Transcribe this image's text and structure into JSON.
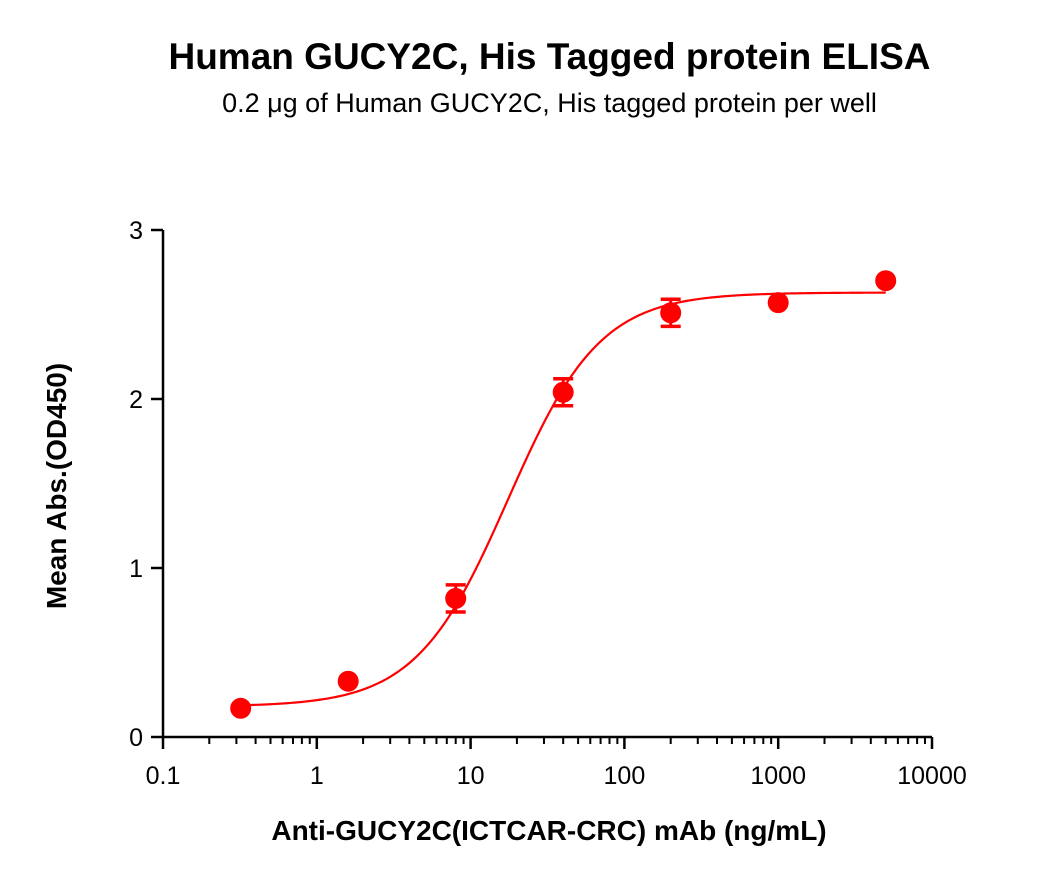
{
  "chart_data": {
    "type": "scatter",
    "title": "Human GUCY2C, His Tagged protein ELISA",
    "subtitle": "0.2 μg of Human GUCY2C, His tagged protein per well",
    "xlabel": "Anti-GUCY2C(ICTCAR-CRC) mAb  (ng/mL)",
    "ylabel": "Mean Abs.(OD450)",
    "x_scale": "log",
    "xlim": [
      0.1,
      10000
    ],
    "ylim": [
      0,
      3
    ],
    "x_ticks": [
      "0.1",
      "1",
      "10",
      "100",
      "1000",
      "10000"
    ],
    "y_ticks": [
      "0",
      "1",
      "2",
      "3"
    ],
    "grid": false,
    "legend": "none",
    "series_color": "#ff0000",
    "series": [
      {
        "points": [
          {
            "x": 0.32,
            "y": 0.17,
            "err": 0.0
          },
          {
            "x": 1.6,
            "y": 0.33,
            "err": 0.0
          },
          {
            "x": 8.0,
            "y": 0.82,
            "err": 0.08
          },
          {
            "x": 40.0,
            "y": 2.04,
            "err": 0.08
          },
          {
            "x": 200.0,
            "y": 2.51,
            "err": 0.08
          },
          {
            "x": 1000.0,
            "y": 2.57,
            "err": 0.0
          },
          {
            "x": 5000.0,
            "y": 2.7,
            "err": 0.0
          }
        ],
        "fit": {
          "model": "4PL",
          "bottom": 0.18,
          "top": 2.63,
          "ec50": 17.5,
          "hill": 1.45
        }
      }
    ]
  }
}
